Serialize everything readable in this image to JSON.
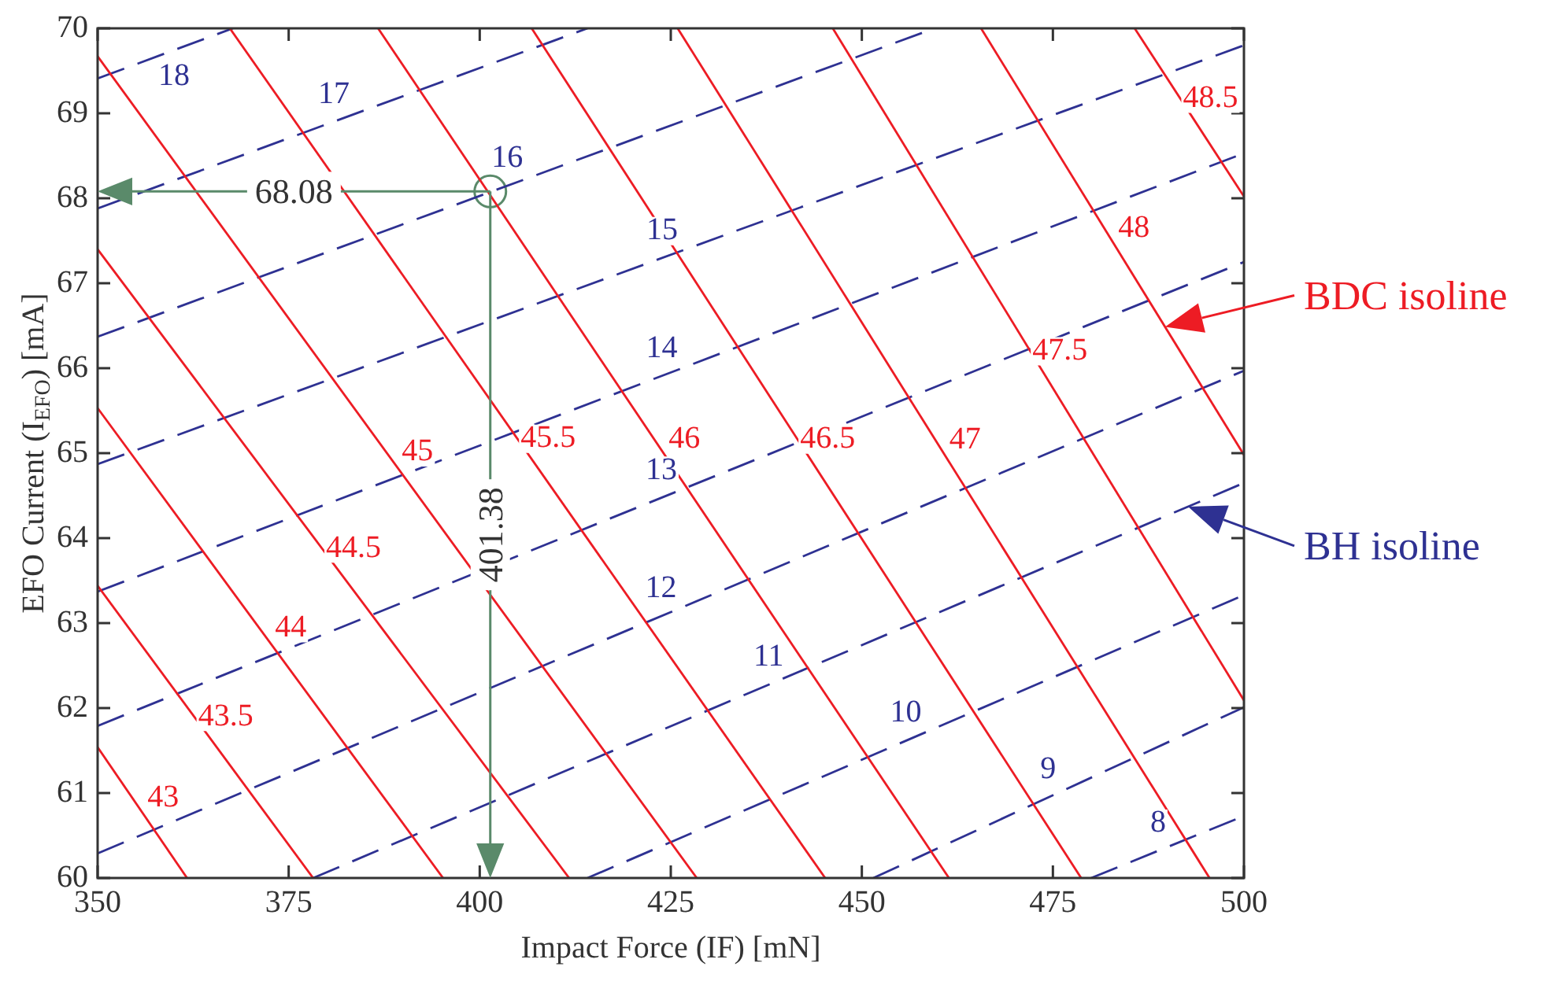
{
  "chart_data": {
    "type": "line",
    "xlabel": "Impact Force (IF) [mN]",
    "ylabel": "EFO Current (I$_{EFO}$) [mA]",
    "xlim": [
      350,
      500
    ],
    "xticks": [
      350,
      375,
      400,
      425,
      450,
      475,
      500
    ],
    "ylim": [
      60,
      70
    ],
    "yticks": [
      60,
      61,
      62,
      63,
      64,
      65,
      66,
      67,
      68,
      69,
      70
    ],
    "grid": false,
    "series": [
      {
        "name": "43",
        "color": "#ed1c24",
        "line_style": "solid",
        "x": [
          350,
          361.7
        ],
        "values": [
          61.54,
          60
        ]
      },
      {
        "name": "43.5",
        "color": "#ed1c24",
        "line_style": "solid",
        "x": [
          350,
          378.2
        ],
        "values": [
          63.44,
          60
        ]
      },
      {
        "name": "44",
        "color": "#ed1c24",
        "line_style": "solid",
        "x": [
          350,
          395.2
        ],
        "values": [
          65.53,
          60
        ]
      },
      {
        "name": "44.5",
        "color": "#ed1c24",
        "line_style": "solid",
        "x": [
          350,
          411.7
        ],
        "values": [
          67.4,
          60
        ]
      },
      {
        "name": "45",
        "color": "#ed1c24",
        "line_style": "solid",
        "x": [
          350,
          428.4
        ],
        "values": [
          69.67,
          60
        ]
      },
      {
        "name": "45.5",
        "color": "#ed1c24",
        "line_style": "solid",
        "x": [
          367.3,
          445.2
        ],
        "values": [
          70,
          60
        ]
      },
      {
        "name": "46",
        "color": "#ed1c24",
        "line_style": "solid",
        "x": [
          386.7,
          461.4
        ],
        "values": [
          70,
          60
        ]
      },
      {
        "name": "46.5",
        "color": "#ed1c24",
        "line_style": "solid",
        "x": [
          406.8,
          478.7
        ],
        "values": [
          70,
          60
        ]
      },
      {
        "name": "47",
        "color": "#ed1c24",
        "line_style": "solid",
        "x": [
          425.9,
          495.5
        ],
        "values": [
          70,
          60
        ]
      },
      {
        "name": "47.5",
        "color": "#ed1c24",
        "line_style": "solid",
        "x": [
          446.2,
          500
        ],
        "values": [
          70,
          62.09
        ]
      },
      {
        "name": "48",
        "color": "#ed1c24",
        "line_style": "solid",
        "x": [
          465.6,
          500
        ],
        "values": [
          70,
          64.98
        ]
      },
      {
        "name": "48.5",
        "color": "#ed1c24",
        "line_style": "solid",
        "x": [
          485.7,
          500
        ],
        "values": [
          70,
          68.02
        ]
      },
      {
        "name": "18",
        "color": "#2e3192",
        "line_style": "dashed",
        "x": [
          350,
          367.7
        ],
        "values": [
          69.41,
          70
        ]
      },
      {
        "name": "17",
        "color": "#2e3192",
        "line_style": "dashed",
        "x": [
          350,
          414.1
        ],
        "values": [
          67.88,
          70
        ]
      },
      {
        "name": "16",
        "color": "#2e3192",
        "line_style": "dashed",
        "x": [
          350,
          459.5
        ],
        "values": [
          66.37,
          70
        ]
      },
      {
        "name": "15",
        "color": "#2e3192",
        "line_style": "dashed",
        "x": [
          350,
          500
        ],
        "values": [
          64.87,
          69.8
        ]
      },
      {
        "name": "14",
        "color": "#2e3192",
        "line_style": "dashed",
        "x": [
          350,
          500
        ],
        "values": [
          63.37,
          68.53
        ]
      },
      {
        "name": "13",
        "color": "#2e3192",
        "line_style": "dashed",
        "x": [
          350,
          500
        ],
        "values": [
          61.79,
          67.25
        ]
      },
      {
        "name": "12",
        "color": "#2e3192",
        "line_style": "dashed",
        "x": [
          350,
          500
        ],
        "values": [
          60.29,
          65.97
        ]
      },
      {
        "name": "11",
        "color": "#2e3192",
        "line_style": "dashed",
        "x": [
          378.2,
          500
        ],
        "values": [
          60,
          64.65
        ]
      },
      {
        "name": "10",
        "color": "#2e3192",
        "line_style": "dashed",
        "x": [
          414.1,
          500
        ],
        "values": [
          60,
          63.33
        ]
      },
      {
        "name": "9",
        "color": "#2e3192",
        "line_style": "dashed",
        "x": [
          451.5,
          500
        ],
        "values": [
          60,
          62.01
        ]
      },
      {
        "name": "8",
        "color": "#2e3192",
        "line_style": "dashed",
        "x": [
          480,
          500
        ],
        "values": [
          60,
          60.73
        ]
      },
      {
        "type": "scatter",
        "color": "#5a8a6a",
        "marker": "circle",
        "x": [
          401.38
        ],
        "values": [
          68.08
        ]
      }
    ],
    "annotations": [
      "68.08",
      "401.38",
      "BDC isoline",
      "BH isoline"
    ]
  }
}
